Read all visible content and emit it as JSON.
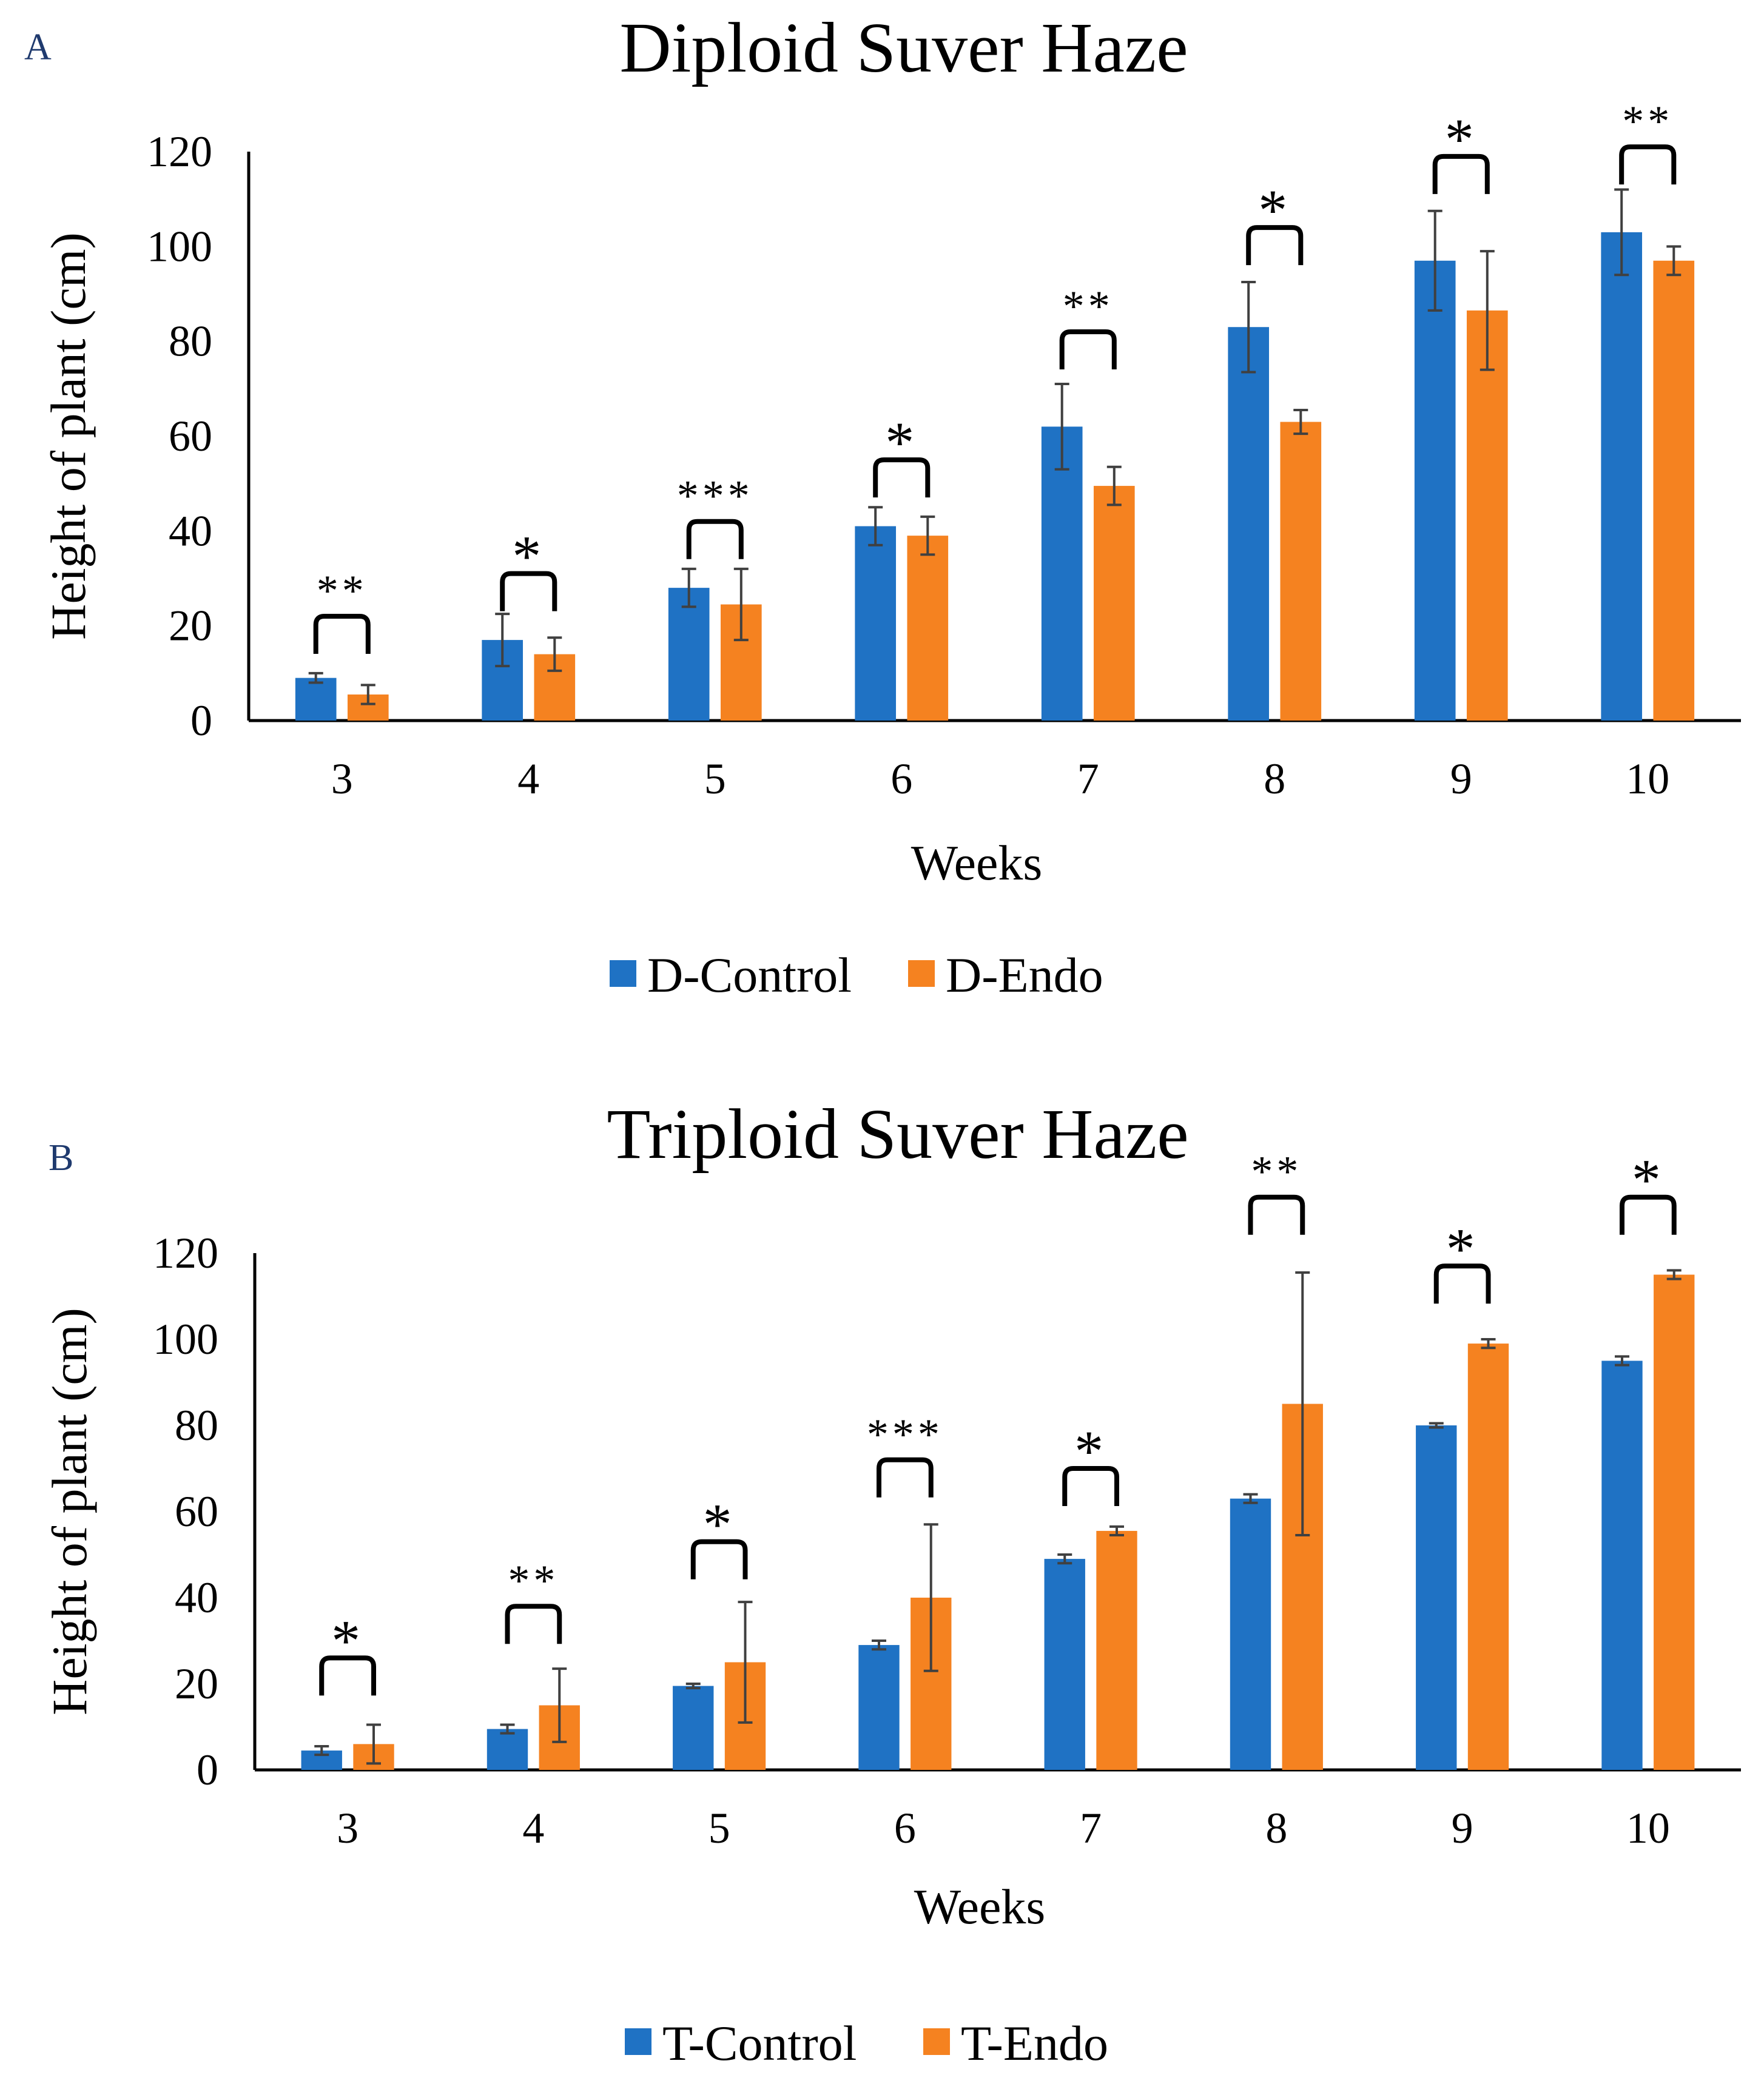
{
  "chart_data": [
    {
      "type": "bar",
      "panel": "A",
      "title": "Diploid Suver Haze",
      "xlabel": "Weeks",
      "ylabel": "Height of plant (cm)",
      "ylim": [
        0,
        120
      ],
      "yticks": [
        0,
        20,
        40,
        60,
        80,
        100,
        120
      ],
      "grid": false,
      "legend_position": "bottom",
      "categories": [
        "3",
        "4",
        "5",
        "6",
        "7",
        "8",
        "9",
        "10"
      ],
      "series": [
        {
          "name": "D-Control",
          "color": "#1f72c4",
          "values": [
            9,
            17,
            28,
            41,
            62,
            83,
            97,
            103
          ],
          "errors": [
            1,
            5.5,
            4,
            4,
            9,
            9.5,
            10.5,
            9
          ]
        },
        {
          "name": "D-Endo",
          "color": "#f58220",
          "values": [
            5.5,
            14,
            24.5,
            39,
            49.5,
            63,
            86.5,
            97
          ],
          "errors": [
            2,
            3.5,
            7.5,
            4,
            4,
            2.5,
            12.5,
            3
          ]
        }
      ],
      "significance": [
        "**",
        "*",
        "***",
        "*",
        "**",
        "*",
        "*",
        "**"
      ],
      "bracket_top": [
        22,
        31,
        42,
        55,
        82,
        104,
        119,
        121
      ]
    },
    {
      "type": "bar",
      "panel": "B",
      "title": "Triploid Suver Haze",
      "xlabel": "Weeks",
      "ylabel": "Height of plant (cm)",
      "ylim": [
        0,
        120
      ],
      "yticks": [
        0,
        20,
        40,
        60,
        80,
        100,
        120
      ],
      "grid": false,
      "legend_position": "bottom",
      "categories": [
        "3",
        "4",
        "5",
        "6",
        "7",
        "8",
        "9",
        "10"
      ],
      "series": [
        {
          "name": "T-Control",
          "color": "#1f72c4",
          "values": [
            4.5,
            9.5,
            19.5,
            29,
            49,
            63,
            80,
            95
          ],
          "errors": [
            1,
            1,
            0.5,
            1,
            1,
            1,
            0.5,
            1
          ]
        },
        {
          "name": "T-Endo",
          "color": "#f58220",
          "values": [
            6,
            15,
            25,
            40,
            55.5,
            85,
            99,
            115
          ],
          "errors": [
            4.5,
            8.5,
            14,
            17,
            1,
            30.5,
            1,
            1
          ]
        }
      ],
      "significance": [
        "*",
        "**",
        "*",
        "***",
        "*",
        "**",
        "*",
        "*"
      ],
      "bracket_top": [
        26,
        38,
        53,
        72,
        70,
        133,
        117,
        133
      ]
    }
  ]
}
